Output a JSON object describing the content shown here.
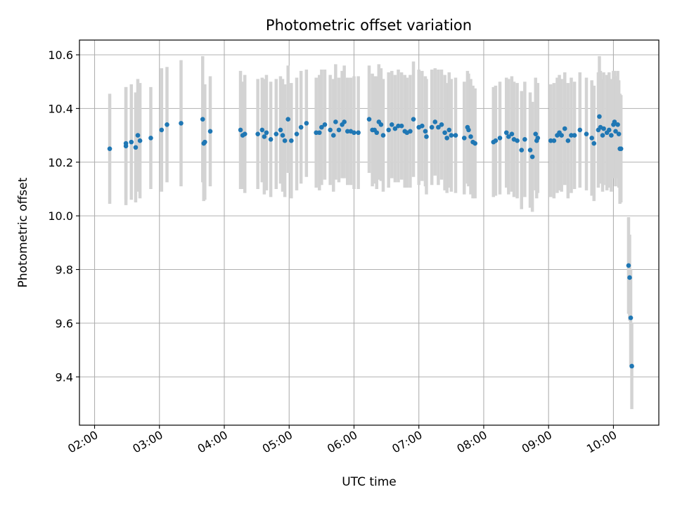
{
  "chart_data": {
    "type": "scatter",
    "title": "Photometric offset variation",
    "xlabel": "UTC time",
    "ylabel": "Photometric offset",
    "grid": true,
    "xlim": [
      "01:46",
      "10:42"
    ],
    "ylim": [
      9.22,
      10.655
    ],
    "xticks": [
      "02:00",
      "03:00",
      "04:00",
      "05:00",
      "06:00",
      "07:00",
      "08:00",
      "09:00",
      "10:00"
    ],
    "yticks": [
      9.4,
      9.6,
      9.8,
      10.0,
      10.2,
      10.4,
      10.6
    ],
    "series": [
      {
        "marker_color": "#1f77b4",
        "errorbar_color": "#d3d3d3",
        "points": [
          [
            "02:14",
            10.25,
            0.205
          ],
          [
            "02:29",
            10.26,
            0.22
          ],
          [
            "02:29",
            10.27,
            0.21
          ],
          [
            "02:34",
            10.275,
            0.215
          ],
          [
            "02:38",
            10.255,
            0.205
          ],
          [
            "02:40",
            10.3,
            0.21
          ],
          [
            "02:42",
            10.28,
            0.215
          ],
          [
            "02:52",
            10.29,
            0.19
          ],
          [
            "03:02",
            10.32,
            0.23
          ],
          [
            "03:07",
            10.34,
            0.215
          ],
          [
            "03:20",
            10.345,
            0.235
          ],
          [
            "03:40",
            10.36,
            0.235
          ],
          [
            "03:41",
            10.27,
            0.215
          ],
          [
            "03:42",
            10.275,
            0.215
          ],
          [
            "03:47",
            10.315,
            0.205
          ],
          [
            "04:15",
            10.32,
            0.22
          ],
          [
            "04:17",
            10.3,
            0.2
          ],
          [
            "04:19",
            10.305,
            0.22
          ],
          [
            "04:31",
            10.305,
            0.205
          ],
          [
            "04:35",
            10.32,
            0.195
          ],
          [
            "04:37",
            10.295,
            0.215
          ],
          [
            "04:39",
            10.31,
            0.215
          ],
          [
            "04:43",
            10.285,
            0.215
          ],
          [
            "04:48",
            10.305,
            0.205
          ],
          [
            "04:52",
            10.32,
            0.2
          ],
          [
            "04:54",
            10.3,
            0.21
          ],
          [
            "04:56",
            10.28,
            0.21
          ],
          [
            "04:59",
            10.36,
            0.2
          ],
          [
            "05:02",
            10.28,
            0.215
          ],
          [
            "05:07",
            10.305,
            0.21
          ],
          [
            "05:11",
            10.33,
            0.21
          ],
          [
            "05:16",
            10.345,
            0.2
          ],
          [
            "05:25",
            10.31,
            0.205
          ],
          [
            "05:28",
            10.31,
            0.215
          ],
          [
            "05:30",
            10.33,
            0.215
          ],
          [
            "05:33",
            10.34,
            0.205
          ],
          [
            "05:38",
            10.32,
            0.205
          ],
          [
            "05:41",
            10.3,
            0.21
          ],
          [
            "05:43",
            10.35,
            0.215
          ],
          [
            "05:46",
            10.32,
            0.195
          ],
          [
            "05:49",
            10.34,
            0.2
          ],
          [
            "05:51",
            10.35,
            0.21
          ],
          [
            "05:54",
            10.315,
            0.2
          ],
          [
            "05:57",
            10.315,
            0.2
          ],
          [
            "06:00",
            10.31,
            0.21
          ],
          [
            "06:04",
            10.31,
            0.21
          ],
          [
            "06:14",
            10.36,
            0.2
          ],
          [
            "06:17",
            10.32,
            0.21
          ],
          [
            "06:19",
            10.32,
            0.2
          ],
          [
            "06:21",
            10.31,
            0.21
          ],
          [
            "06:23",
            10.35,
            0.215
          ],
          [
            "06:25",
            10.34,
            0.21
          ],
          [
            "06:27",
            10.3,
            0.21
          ],
          [
            "06:32",
            10.32,
            0.215
          ],
          [
            "06:35",
            10.34,
            0.2
          ],
          [
            "06:38",
            10.325,
            0.2
          ],
          [
            "06:41",
            10.335,
            0.21
          ],
          [
            "06:44",
            10.335,
            0.2
          ],
          [
            "06:47",
            10.315,
            0.21
          ],
          [
            "06:49",
            10.31,
            0.205
          ],
          [
            "06:52",
            10.315,
            0.21
          ],
          [
            "06:55",
            10.36,
            0.215
          ],
          [
            "07:00",
            10.33,
            0.215
          ],
          [
            "07:03",
            10.335,
            0.205
          ],
          [
            "07:06",
            10.315,
            0.205
          ],
          [
            "07:07",
            10.295,
            0.215
          ],
          [
            "07:12",
            10.33,
            0.215
          ],
          [
            "07:15",
            10.35,
            0.2
          ],
          [
            "07:18",
            10.33,
            0.215
          ],
          [
            "07:21",
            10.34,
            0.205
          ],
          [
            "07:24",
            10.31,
            0.215
          ],
          [
            "07:26",
            10.29,
            0.205
          ],
          [
            "07:28",
            10.32,
            0.215
          ],
          [
            "07:30",
            10.3,
            0.21
          ],
          [
            "07:34",
            10.3,
            0.215
          ],
          [
            "07:42",
            10.29,
            0.21
          ],
          [
            "07:45",
            10.33,
            0.21
          ],
          [
            "07:46",
            10.32,
            0.21
          ],
          [
            "07:48",
            10.295,
            0.215
          ],
          [
            "07:50",
            10.275,
            0.21
          ],
          [
            "07:52",
            10.27,
            0.205
          ],
          [
            "08:09",
            10.275,
            0.205
          ],
          [
            "08:11",
            10.28,
            0.205
          ],
          [
            "08:15",
            10.29,
            0.21
          ],
          [
            "08:21",
            10.31,
            0.205
          ],
          [
            "08:23",
            10.295,
            0.215
          ],
          [
            "08:26",
            10.305,
            0.215
          ],
          [
            "08:28",
            10.285,
            0.215
          ],
          [
            "08:31",
            10.28,
            0.215
          ],
          [
            "08:35",
            10.245,
            0.22
          ],
          [
            "08:38",
            10.285,
            0.215
          ],
          [
            "08:43",
            10.245,
            0.215
          ],
          [
            "08:45",
            10.22,
            0.205
          ],
          [
            "08:48",
            10.305,
            0.21
          ],
          [
            "08:49",
            10.28,
            0.215
          ],
          [
            "08:50",
            10.29,
            0.205
          ],
          [
            "09:02",
            10.28,
            0.21
          ],
          [
            "09:05",
            10.28,
            0.215
          ],
          [
            "09:08",
            10.3,
            0.215
          ],
          [
            "09:10",
            10.31,
            0.215
          ],
          [
            "09:12",
            10.3,
            0.21
          ],
          [
            "09:15",
            10.325,
            0.21
          ],
          [
            "09:18",
            10.28,
            0.215
          ],
          [
            "09:21",
            10.3,
            0.215
          ],
          [
            "09:24",
            10.3,
            0.2
          ],
          [
            "09:29",
            10.32,
            0.215
          ],
          [
            "09:35",
            10.305,
            0.21
          ],
          [
            "09:40",
            10.29,
            0.215
          ],
          [
            "09:42",
            10.27,
            0.215
          ],
          [
            "09:46",
            10.32,
            0.215
          ],
          [
            "09:47",
            10.37,
            0.225
          ],
          [
            "09:48",
            10.33,
            0.21
          ],
          [
            "09:50",
            10.3,
            0.21
          ],
          [
            "09:51",
            10.325,
            0.21
          ],
          [
            "09:54",
            10.31,
            0.215
          ],
          [
            "09:56",
            10.32,
            0.215
          ],
          [
            "09:58",
            10.3,
            0.21
          ],
          [
            "10:00",
            10.34,
            0.2
          ],
          [
            "10:01",
            10.35,
            0.19
          ],
          [
            "10:02",
            10.315,
            0.205
          ],
          [
            "10:04",
            10.34,
            0.2
          ],
          [
            "10:05",
            10.305,
            0.2
          ],
          [
            "10:06",
            10.25,
            0.205
          ],
          [
            "10:07",
            10.25,
            0.2
          ],
          [
            "10:14",
            9.815,
            0.18
          ],
          [
            "10:15",
            9.77,
            0.16
          ],
          [
            "10:16",
            9.62,
            0.18
          ],
          [
            "10:17",
            9.44,
            0.16
          ]
        ]
      }
    ]
  }
}
